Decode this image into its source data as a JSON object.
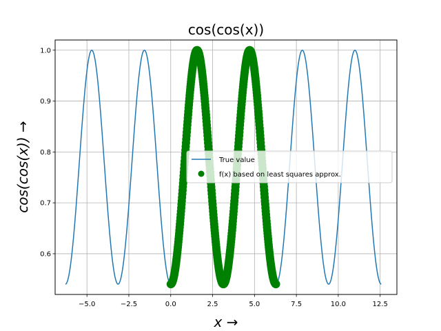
{
  "chart_data": {
    "type": "line",
    "title": "cos(cos(x))",
    "xlabel": "x →",
    "ylabel": "cos(cos(x)) →",
    "xlim": [
      -6.9,
      13.5
    ],
    "ylim": [
      0.52,
      1.02
    ],
    "xticks": [
      -5.0,
      -2.5,
      0.0,
      2.5,
      5.0,
      7.5,
      10.0,
      12.5
    ],
    "xtick_labels": [
      "−5.0",
      "−2.5",
      "0.0",
      "2.5",
      "5.0",
      "7.5",
      "10.0",
      "12.5"
    ],
    "yticks": [
      0.6,
      0.7,
      0.8,
      0.9,
      1.0
    ],
    "ytick_labels": [
      "0.6",
      "0.7",
      "0.8",
      "0.9",
      "1.0"
    ],
    "grid": true,
    "legend": "center-right",
    "series": [
      {
        "name": "True value",
        "kind": "line",
        "color": "#1f77b4",
        "function": "cos(cos(x))",
        "x_range": [
          -6.283,
          12.566
        ],
        "extrema": [
          {
            "x": -6.283,
            "y": 0.5403
          },
          {
            "x": -4.712,
            "y": 1.0
          },
          {
            "x": -3.142,
            "y": 0.5403
          },
          {
            "x": -1.571,
            "y": 1.0
          },
          {
            "x": 0.0,
            "y": 0.5403
          },
          {
            "x": 1.571,
            "y": 1.0
          },
          {
            "x": 3.142,
            "y": 0.5403
          },
          {
            "x": 4.712,
            "y": 1.0
          },
          {
            "x": 6.283,
            "y": 0.5403
          },
          {
            "x": 7.854,
            "y": 1.0
          },
          {
            "x": 9.425,
            "y": 0.5403
          },
          {
            "x": 10.996,
            "y": 1.0
          },
          {
            "x": 12.566,
            "y": 0.5403
          }
        ]
      },
      {
        "name": "f(x) based on least squares approx.",
        "kind": "scatter",
        "color": "#008000",
        "function": "cos(cos(x))",
        "x_range": [
          0.0,
          6.283
        ],
        "extrema": [
          {
            "x": 0.0,
            "y": 0.5403
          },
          {
            "x": 1.571,
            "y": 1.0
          },
          {
            "x": 3.142,
            "y": 0.5403
          },
          {
            "x": 4.712,
            "y": 1.0
          },
          {
            "x": 6.283,
            "y": 0.5403
          }
        ]
      }
    ]
  }
}
